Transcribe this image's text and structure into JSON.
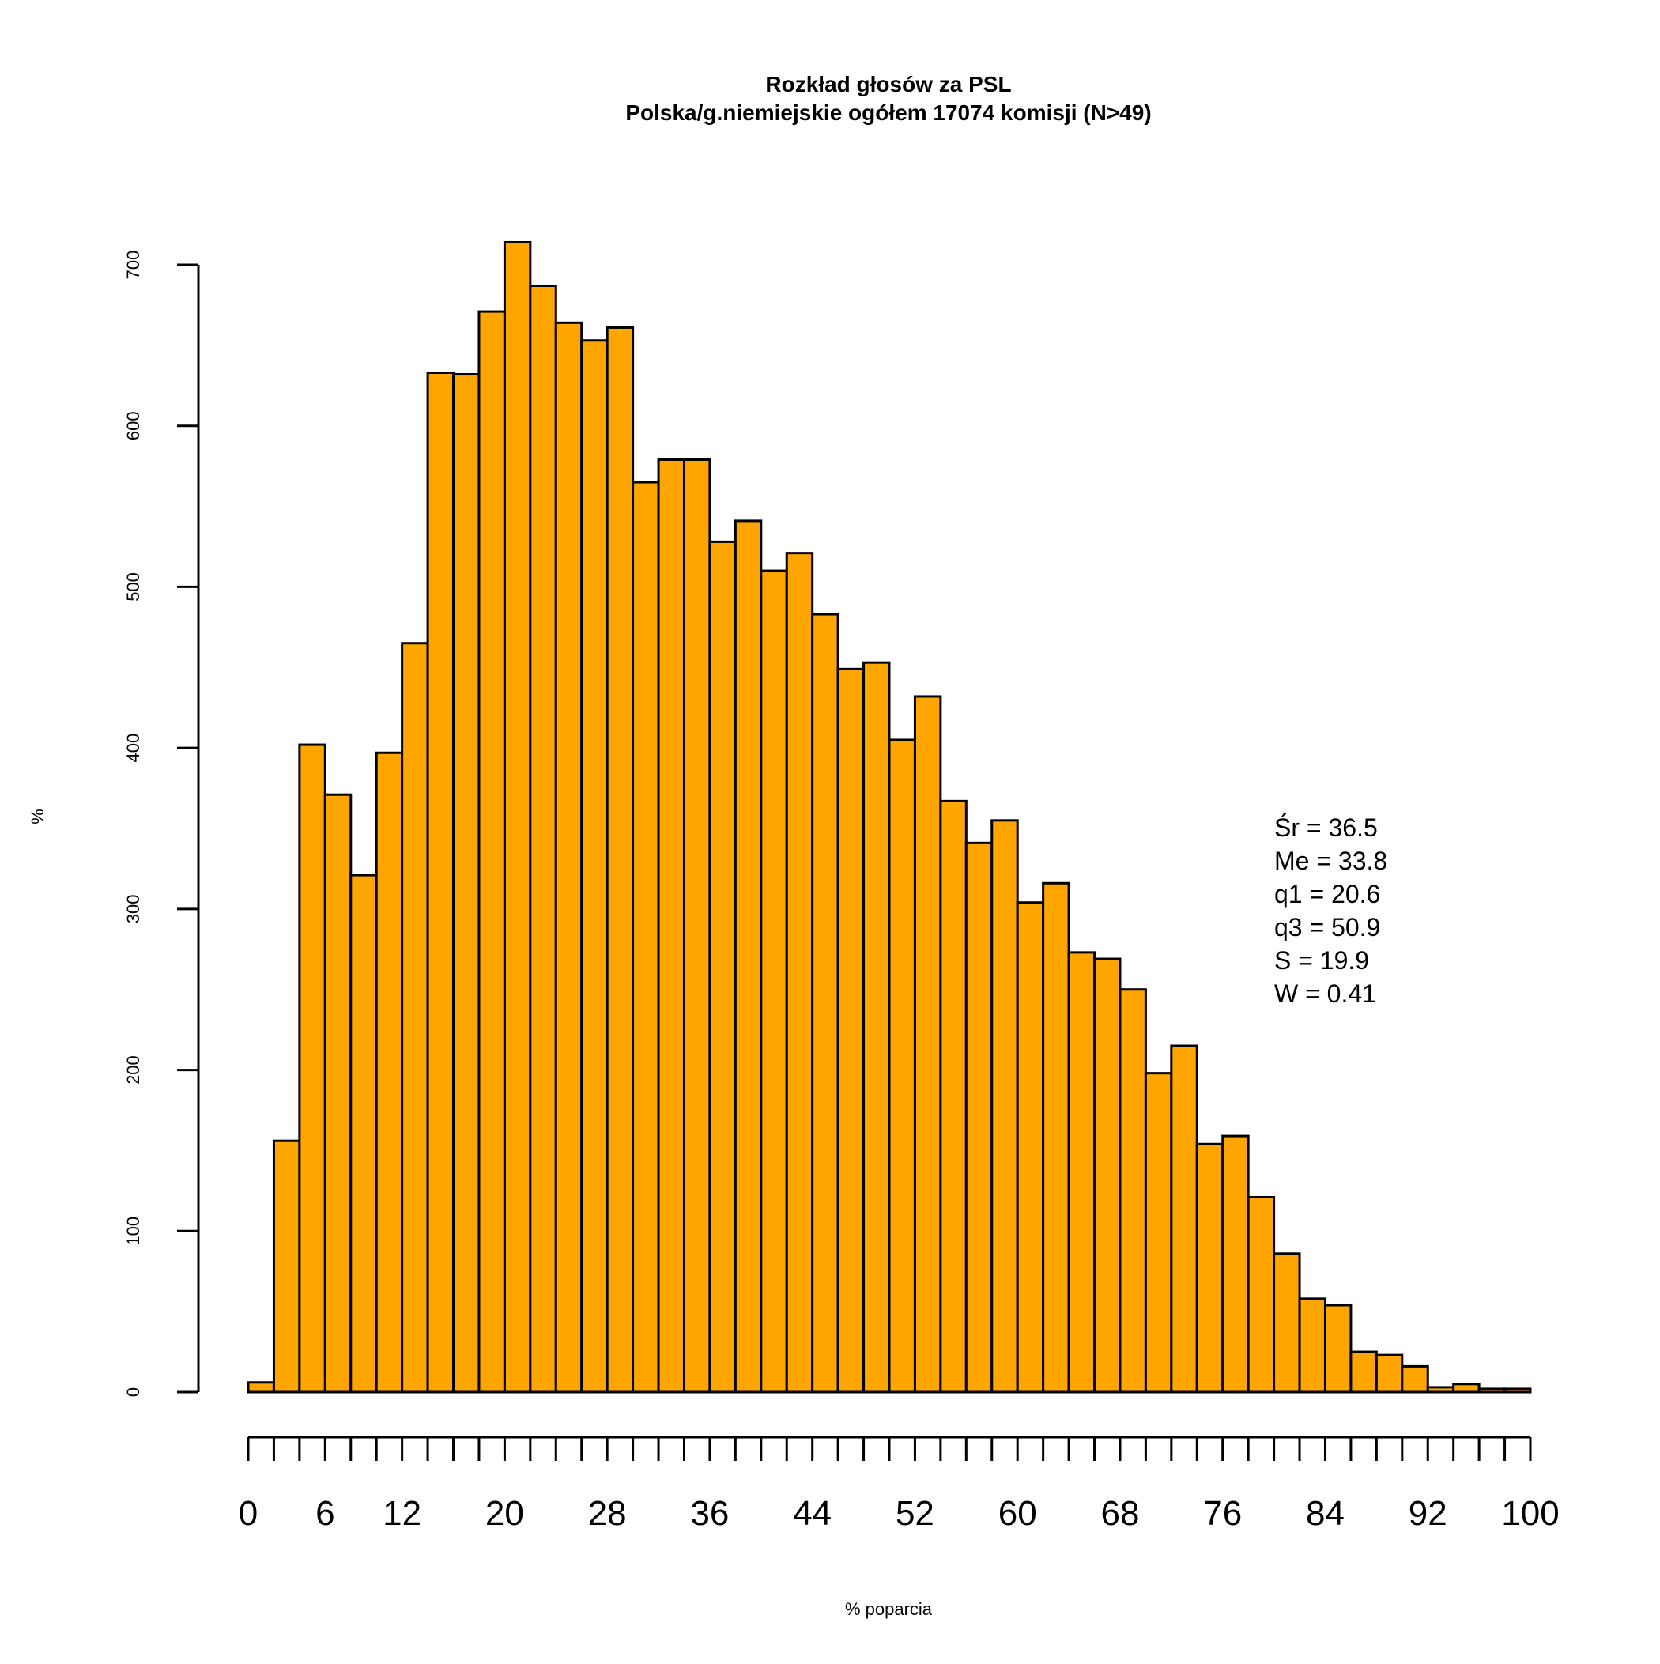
{
  "chart_data": {
    "type": "bar",
    "title": "Rozkład głosów za PSL",
    "subtitle": "Polska/g.niemiejskie ogółem 17074 komisji (N>49)",
    "xlabel": "% poparcia",
    "ylabel": "%",
    "bin_edges": [
      0,
      2,
      4,
      6,
      8,
      10,
      12,
      14,
      16,
      18,
      20,
      22,
      24,
      26,
      28,
      30,
      32,
      34,
      36,
      38,
      40,
      42,
      44,
      46,
      48,
      50,
      52,
      54,
      56,
      58,
      60,
      62,
      64,
      66,
      68,
      70,
      72,
      74,
      76,
      78,
      80,
      82,
      84,
      86,
      88,
      90,
      92,
      94,
      96,
      98,
      100
    ],
    "values": [
      6,
      156,
      402,
      371,
      321,
      397,
      465,
      633,
      632,
      671,
      714,
      687,
      664,
      653,
      661,
      565,
      579,
      579,
      528,
      541,
      510,
      521,
      483,
      449,
      453,
      405,
      432,
      367,
      341,
      355,
      304,
      316,
      273,
      269,
      250,
      198,
      215,
      154,
      159,
      121,
      86,
      58,
      54,
      25,
      23,
      16,
      3,
      5,
      2,
      2
    ],
    "xlim": [
      0,
      100
    ],
    "ylim": [
      0,
      700
    ],
    "x_ticks": [
      "0",
      "6",
      "12",
      "20",
      "28",
      "36",
      "44",
      "52",
      "60",
      "68",
      "76",
      "84",
      "92",
      "100"
    ],
    "x_tick_values": [
      0,
      6,
      12,
      20,
      28,
      36,
      44,
      52,
      60,
      68,
      76,
      84,
      92,
      100
    ],
    "y_ticks": [
      "0",
      "100",
      "200",
      "300",
      "400",
      "500",
      "600",
      "700"
    ],
    "y_tick_values": [
      0,
      100,
      200,
      300,
      400,
      500,
      600,
      700
    ],
    "stats": [
      "Śr = 36.5",
      "Me = 33.8",
      "q1 = 20.6",
      "q3 = 50.9",
      "S = 19.9",
      "W = 0.41"
    ],
    "bar_color": "#FFA500",
    "grid": false
  }
}
